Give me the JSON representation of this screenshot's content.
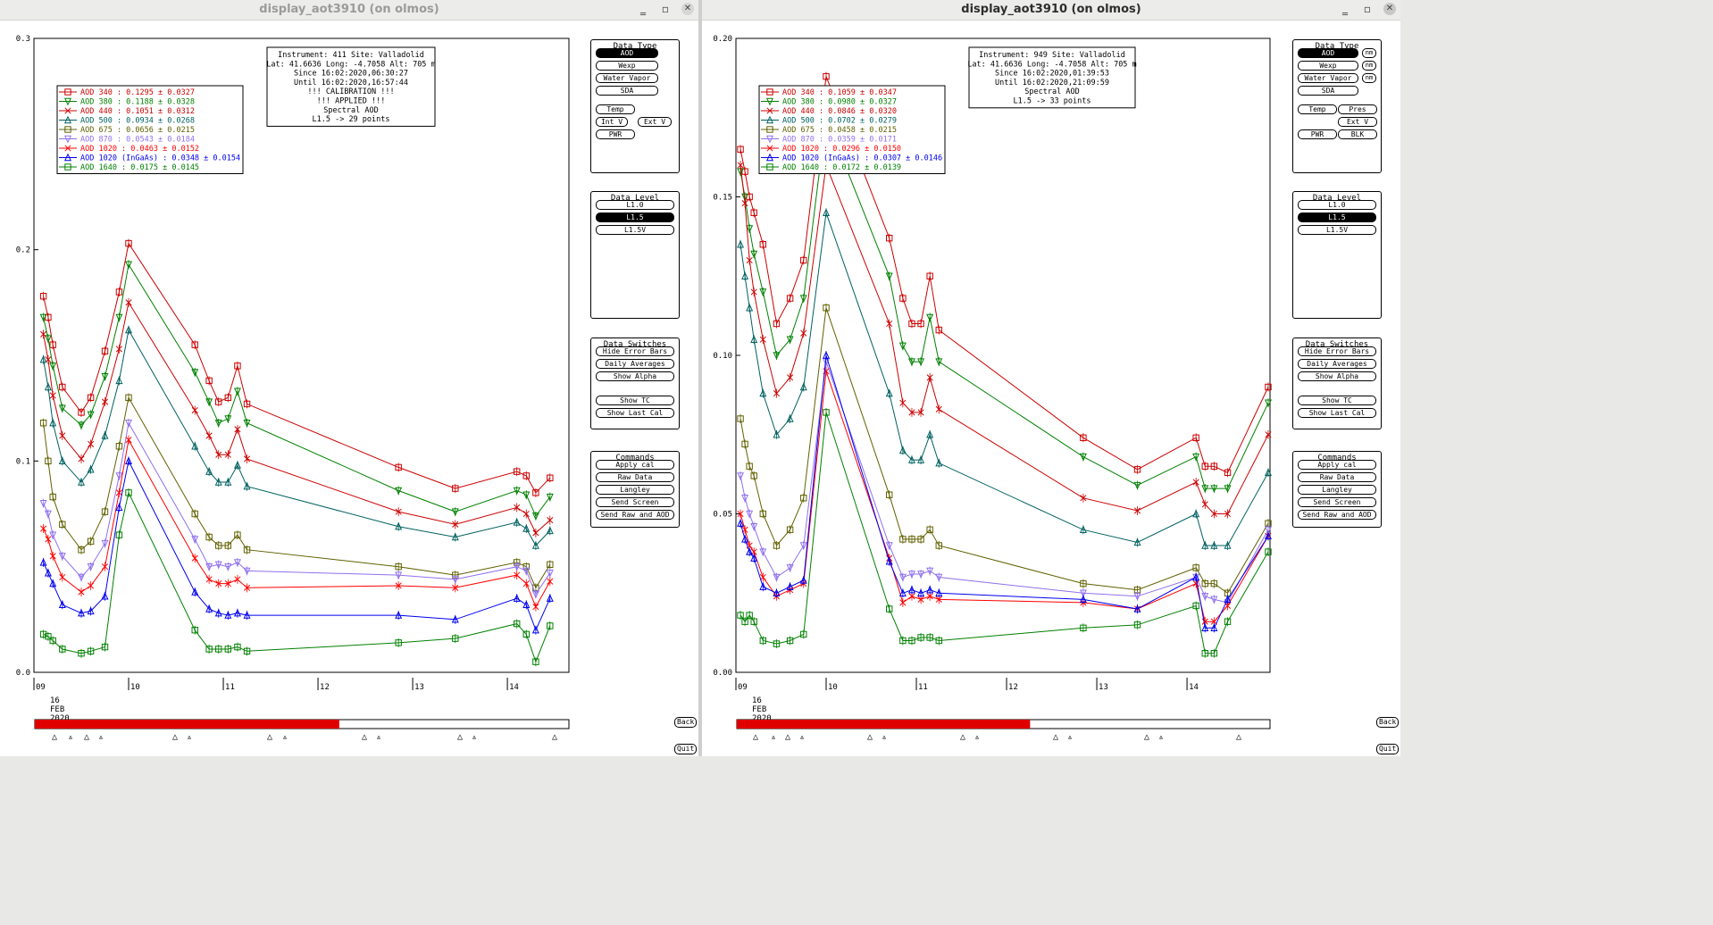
{
  "windows": [
    {
      "title": "display_aot3910 (on olmos)",
      "info": [
        "Instrument: 411 Site: Valladolid",
        "Lat: 41.6636 Long: -4.7058 Alt: 705 m",
        "Since 16:02:2020,06:30:27",
        "Until 16:02:2020,16:57:44",
        "!!! CALIBRATION !!!",
        "!!!   APPLIED   !!!",
        "Spectral AOD",
        "L1.5 -> 29 points"
      ],
      "legend": [
        {
          "label": "AOD 340   : 0.1295 ± 0.0327",
          "color": "#cc0000",
          "marker": "square"
        },
        {
          "label": "AOD 380   : 0.1188 ± 0.0328",
          "color": "#008000",
          "marker": "tri-down"
        },
        {
          "label": "AOD 440   : 0.1051 ± 0.0312",
          "color": "#cc0000",
          "marker": "x"
        },
        {
          "label": "AOD 500   : 0.0934 ± 0.0268",
          "color": "#006060",
          "marker": "tri-up"
        },
        {
          "label": "AOD 675   : 0.0656 ± 0.0215",
          "color": "#606000",
          "marker": "square"
        },
        {
          "label": "AOD 870   : 0.0543 ± 0.0184",
          "color": "#9070ee",
          "marker": "tri-down"
        },
        {
          "label": "AOD 1020  : 0.0463 ± 0.0152",
          "color": "#ff0000",
          "marker": "x"
        },
        {
          "label": "AOD 1020 (InGaAs)  : 0.0348 ± 0.0154",
          "color": "#0000ee",
          "marker": "tri-up"
        },
        {
          "label": "AOD 1640  : 0.0175 ± 0.0145",
          "color": "#008000",
          "marker": "square"
        }
      ],
      "ytick_labels": [
        "0.0",
        "0.1",
        "0.2",
        "0.3"
      ],
      "ymax": 0.3,
      "xtick_labels": [
        "09",
        "10",
        "11",
        "12",
        "13",
        "14"
      ],
      "date_labels": [
        "16",
        "FEB",
        "2020"
      ],
      "panels": {
        "data_type": {
          "title": "Data Type",
          "buttons": [
            "AOD",
            "Wexp",
            "Water Vapor",
            "SDA",
            "Temp",
            "Int V",
            "Ext V",
            "PWR"
          ],
          "selected": "AOD"
        },
        "data_level": {
          "title": "Data Level",
          "buttons": [
            "L1.0",
            "L1.5",
            "L1.5V"
          ],
          "selected": "L1.5"
        },
        "data_switches": {
          "title": "Data Switches",
          "buttons": [
            "Hide Error Bars",
            "Daily Averages",
            "Show Alpha",
            "Show TC",
            "Show Last Cal"
          ]
        },
        "commands": {
          "title": "Commands",
          "buttons": [
            "Apply cal",
            "Raw Data",
            "Langley",
            "Send Screen",
            "Send Raw and AOD"
          ]
        }
      },
      "side_buttons": [
        "Back",
        "Quit"
      ],
      "progress_fraction": 0.57,
      "progress_color": "#e00000"
    },
    {
      "title": "display_aot3910 (on olmos)",
      "info": [
        "Instrument: 949 Site: Valladolid",
        "Lat: 41.6636 Long: -4.7058 Alt: 705 m",
        "Since 16:02:2020,01:39:53",
        "Until 16:02:2020,21:09:59",
        "Spectral AOD",
        "L1.5 -> 33 points"
      ],
      "legend": [
        {
          "label": "AOD 340   : 0.1059 ± 0.0347",
          "color": "#cc0000",
          "marker": "square"
        },
        {
          "label": "AOD 380   : 0.0980 ± 0.0327",
          "color": "#008000",
          "marker": "tri-down"
        },
        {
          "label": "AOD 440   : 0.0846 ± 0.0320",
          "color": "#cc0000",
          "marker": "x"
        },
        {
          "label": "AOD 500   : 0.0702 ± 0.0279",
          "color": "#006060",
          "marker": "tri-up"
        },
        {
          "label": "AOD 675   : 0.0458 ± 0.0215",
          "color": "#606000",
          "marker": "square"
        },
        {
          "label": "AOD 870   : 0.0359 ± 0.0171",
          "color": "#9070ee",
          "marker": "tri-down"
        },
        {
          "label": "AOD 1020  : 0.0296 ± 0.0150",
          "color": "#ff0000",
          "marker": "x"
        },
        {
          "label": "AOD 1020 (InGaAs)  : 0.0307 ± 0.0146",
          "color": "#0000ee",
          "marker": "tri-up"
        },
        {
          "label": "AOD 1640  : 0.0172 ± 0.0139",
          "color": "#008000",
          "marker": "square"
        }
      ],
      "ytick_labels": [
        "0.00",
        "0.05",
        "0.10",
        "0.15",
        "0.20"
      ],
      "ymax": 0.2,
      "xtick_labels": [
        "09",
        "10",
        "11",
        "12",
        "13",
        "14"
      ],
      "date_labels": [
        "16",
        "FEB",
        "2020"
      ],
      "panels": {
        "data_type": {
          "title": "Data Type",
          "buttons": [
            "AOD",
            "Wexp",
            "Water Vapor",
            "SDA",
            "Temp",
            "Pres",
            "Ext V",
            "PWR",
            "BLK"
          ],
          "selected": "AOD",
          "nm_label": "nm"
        },
        "data_level": {
          "title": "Data Level",
          "buttons": [
            "L1.0",
            "L1.5",
            "L1.5V"
          ],
          "selected": "L1.5"
        },
        "data_switches": {
          "title": "Data Switches",
          "buttons": [
            "Hide Error Bars",
            "Daily Averages",
            "Show Alpha",
            "Show TC",
            "Show Last Cal"
          ]
        },
        "commands": {
          "title": "Commands",
          "buttons": [
            "Apply cal",
            "Raw Data",
            "Langley",
            "Send Screen",
            "Send Raw and AOD"
          ]
        }
      },
      "side_buttons": [
        "Back",
        "Quit"
      ],
      "progress_fraction": 0.55,
      "progress_color": "#e00000"
    }
  ],
  "chart_data": [
    {
      "type": "line",
      "title": "",
      "x": [
        9.1,
        9.15,
        9.2,
        9.3,
        9.5,
        9.6,
        9.75,
        9.9,
        10.0,
        10.7,
        10.85,
        10.95,
        11.05,
        11.15,
        11.25,
        12.85,
        13.45,
        14.1,
        14.2,
        14.3,
        14.45
      ],
      "xlim": [
        9.0,
        14.65
      ],
      "ylim": [
        0,
        0.3
      ],
      "grid": false,
      "series": [
        {
          "name": "AOD 340",
          "values": [
            0.178,
            0.168,
            0.155,
            0.135,
            0.123,
            0.13,
            0.152,
            0.18,
            0.203,
            0.155,
            0.138,
            0.128,
            0.13,
            0.145,
            0.127,
            0.097,
            0.087,
            0.095,
            0.093,
            0.085,
            0.092
          ]
        },
        {
          "name": "AOD 380",
          "values": [
            0.168,
            0.158,
            0.145,
            0.125,
            0.117,
            0.122,
            0.14,
            0.168,
            0.193,
            0.142,
            0.128,
            0.118,
            0.12,
            0.133,
            0.118,
            0.086,
            0.076,
            0.086,
            0.084,
            0.074,
            0.083
          ]
        },
        {
          "name": "AOD 440",
          "values": [
            0.16,
            0.148,
            0.131,
            0.112,
            0.101,
            0.108,
            0.128,
            0.153,
            0.175,
            0.124,
            0.112,
            0.103,
            0.103,
            0.115,
            0.101,
            0.076,
            0.07,
            0.078,
            0.075,
            0.066,
            0.072
          ]
        },
        {
          "name": "AOD 500",
          "values": [
            0.148,
            0.135,
            0.118,
            0.1,
            0.09,
            0.096,
            0.112,
            0.138,
            0.162,
            0.107,
            0.095,
            0.09,
            0.09,
            0.098,
            0.088,
            0.069,
            0.064,
            0.071,
            0.068,
            0.06,
            0.067
          ]
        },
        {
          "name": "AOD 675",
          "values": [
            0.118,
            0.1,
            0.083,
            0.07,
            0.058,
            0.062,
            0.076,
            0.107,
            0.13,
            0.075,
            0.064,
            0.06,
            0.06,
            0.065,
            0.058,
            0.05,
            0.046,
            0.052,
            0.05,
            0.04,
            0.051
          ]
        },
        {
          "name": "AOD 870",
          "values": [
            0.08,
            0.075,
            0.065,
            0.055,
            0.045,
            0.05,
            0.061,
            0.093,
            0.118,
            0.063,
            0.05,
            0.051,
            0.05,
            0.052,
            0.048,
            0.046,
            0.044,
            0.05,
            0.048,
            0.037,
            0.047
          ]
        },
        {
          "name": "AOD 1020",
          "values": [
            0.068,
            0.063,
            0.055,
            0.045,
            0.038,
            0.041,
            0.05,
            0.085,
            0.11,
            0.054,
            0.044,
            0.042,
            0.042,
            0.044,
            0.04,
            0.041,
            0.04,
            0.046,
            0.042,
            0.031,
            0.043
          ]
        },
        {
          "name": "AOD 1020 (InGaAs)",
          "values": [
            0.052,
            0.047,
            0.042,
            0.032,
            0.028,
            0.029,
            0.036,
            0.078,
            0.1,
            0.038,
            0.03,
            0.028,
            0.027,
            0.028,
            0.027,
            0.027,
            0.025,
            0.035,
            0.032,
            0.02,
            0.035
          ]
        },
        {
          "name": "AOD 1640",
          "values": [
            0.018,
            0.017,
            0.015,
            0.011,
            0.009,
            0.01,
            0.012,
            0.065,
            0.085,
            0.02,
            0.011,
            0.011,
            0.011,
            0.012,
            0.01,
            0.014,
            0.016,
            0.023,
            0.018,
            0.005,
            0.022
          ]
        }
      ]
    },
    {
      "type": "line",
      "title": "",
      "x": [
        9.05,
        9.1,
        9.15,
        9.2,
        9.3,
        9.45,
        9.6,
        9.75,
        10.0,
        10.7,
        10.85,
        10.95,
        11.05,
        11.15,
        11.25,
        12.85,
        13.45,
        14.1,
        14.2,
        14.3,
        14.45,
        14.9
      ],
      "xlim": [
        9.0,
        14.92
      ],
      "ylim": [
        0,
        0.2
      ],
      "grid": false,
      "series": [
        {
          "name": "AOD 340",
          "values": [
            0.165,
            0.158,
            0.15,
            0.145,
            0.135,
            0.11,
            0.118,
            0.13,
            0.188,
            0.137,
            0.118,
            0.11,
            0.11,
            0.125,
            0.108,
            0.074,
            0.064,
            0.074,
            0.065,
            0.065,
            0.063,
            0.09
          ]
        },
        {
          "name": "AOD 380",
          "values": [
            0.158,
            0.15,
            0.14,
            0.132,
            0.12,
            0.1,
            0.105,
            0.118,
            0.175,
            0.125,
            0.103,
            0.098,
            0.098,
            0.112,
            0.098,
            0.068,
            0.059,
            0.068,
            0.058,
            0.058,
            0.058,
            0.085
          ]
        },
        {
          "name": "AOD 440",
          "values": [
            0.16,
            0.148,
            0.13,
            0.12,
            0.105,
            0.088,
            0.093,
            0.107,
            0.16,
            0.11,
            0.085,
            0.082,
            0.082,
            0.093,
            0.083,
            0.055,
            0.051,
            0.06,
            0.053,
            0.05,
            0.05,
            0.075
          ]
        },
        {
          "name": "AOD 500",
          "values": [
            0.135,
            0.125,
            0.115,
            0.105,
            0.088,
            0.075,
            0.08,
            0.09,
            0.145,
            0.088,
            0.07,
            0.067,
            0.067,
            0.075,
            0.066,
            0.045,
            0.041,
            0.05,
            0.04,
            0.04,
            0.04,
            0.063
          ]
        },
        {
          "name": "AOD 675",
          "values": [
            0.08,
            0.072,
            0.065,
            0.062,
            0.05,
            0.04,
            0.045,
            0.055,
            0.115,
            0.056,
            0.042,
            0.042,
            0.042,
            0.045,
            0.04,
            0.028,
            0.026,
            0.033,
            0.028,
            0.028,
            0.025,
            0.047
          ]
        },
        {
          "name": "AOD 870",
          "values": [
            0.062,
            0.055,
            0.05,
            0.046,
            0.038,
            0.03,
            0.033,
            0.04,
            0.098,
            0.04,
            0.03,
            0.031,
            0.031,
            0.032,
            0.03,
            0.025,
            0.024,
            0.03,
            0.024,
            0.023,
            0.022,
            0.045
          ]
        },
        {
          "name": "AOD 1020",
          "values": [
            0.05,
            0.045,
            0.04,
            0.038,
            0.03,
            0.024,
            0.026,
            0.028,
            0.095,
            0.036,
            0.022,
            0.024,
            0.023,
            0.024,
            0.023,
            0.022,
            0.02,
            0.028,
            0.016,
            0.016,
            0.021,
            0.043
          ]
        },
        {
          "name": "AOD 1020 (InGaAs)",
          "values": [
            0.047,
            0.042,
            0.038,
            0.036,
            0.027,
            0.025,
            0.027,
            0.029,
            0.1,
            0.035,
            0.025,
            0.026,
            0.025,
            0.026,
            0.025,
            0.023,
            0.02,
            0.03,
            0.014,
            0.014,
            0.023,
            0.043
          ]
        },
        {
          "name": "AOD 1640",
          "values": [
            0.018,
            0.016,
            0.018,
            0.016,
            0.01,
            0.009,
            0.01,
            0.012,
            0.082,
            0.02,
            0.01,
            0.01,
            0.011,
            0.011,
            0.01,
            0.014,
            0.015,
            0.021,
            0.006,
            0.006,
            0.016,
            0.038
          ]
        }
      ]
    }
  ]
}
